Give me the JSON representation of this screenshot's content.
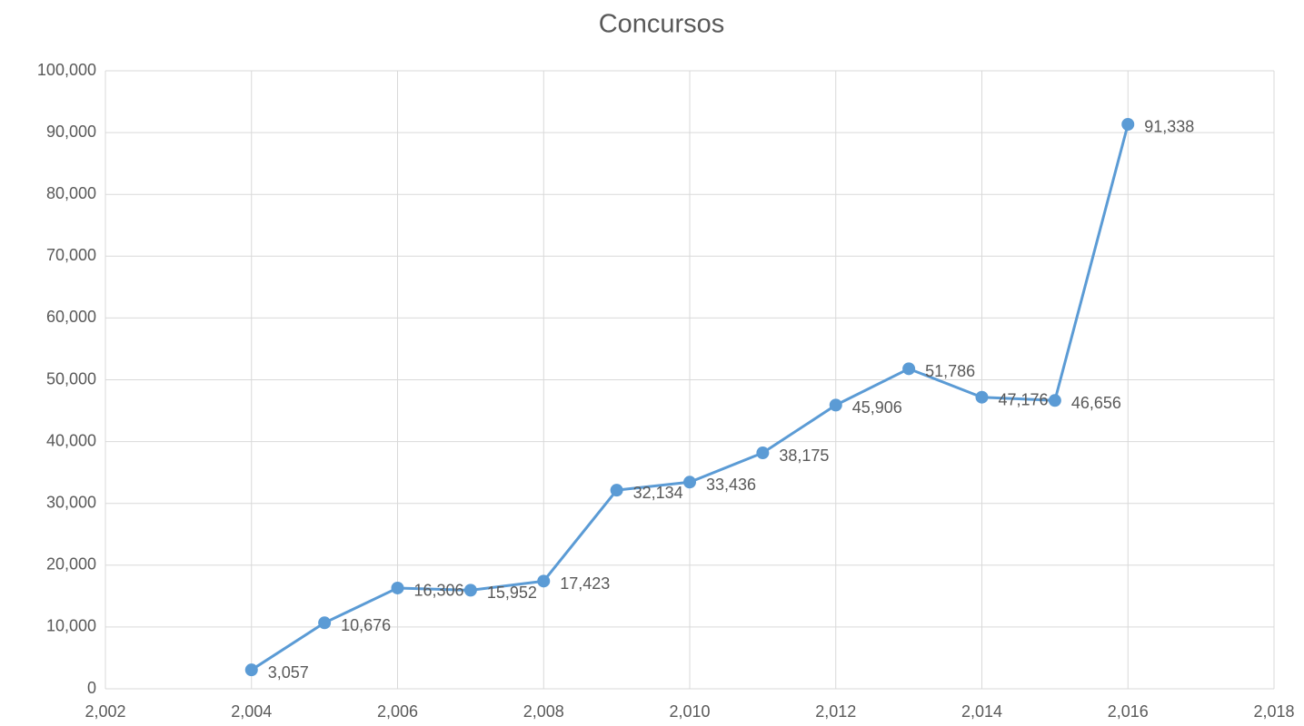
{
  "chart_data": {
    "type": "line",
    "title": "Concursos",
    "x": [
      2004,
      2005,
      2006,
      2007,
      2008,
      2009,
      2010,
      2011,
      2012,
      2013,
      2014,
      2015,
      2016
    ],
    "series": [
      {
        "name": "Concursos",
        "color": "#5b9bd5",
        "values": [
          3057,
          10676,
          16306,
          15952,
          17423,
          32134,
          33436,
          38175,
          45906,
          51786,
          47176,
          46656,
          91338
        ],
        "value_labels": [
          "3,057",
          "10,676",
          "16,306",
          "15,952",
          "17,423",
          "32,134",
          "33,436",
          "38,175",
          "45,906",
          "51,786",
          "47,176",
          "46,656",
          "91,338"
        ]
      }
    ],
    "xlim": [
      2002,
      2018
    ],
    "xticks": [
      {
        "value": 2002,
        "label": "2,002"
      },
      {
        "value": 2004,
        "label": "2,004"
      },
      {
        "value": 2006,
        "label": "2,006"
      },
      {
        "value": 2008,
        "label": "2,008"
      },
      {
        "value": 2010,
        "label": "2,010"
      },
      {
        "value": 2012,
        "label": "2,012"
      },
      {
        "value": 2014,
        "label": "2,014"
      },
      {
        "value": 2016,
        "label": "2,016"
      },
      {
        "value": 2018,
        "label": "2,018"
      }
    ],
    "ylim": [
      0,
      100000
    ],
    "yticks": [
      0,
      {
        "value": 10000,
        "label": "10,000"
      },
      {
        "value": 20000,
        "label": "20,000"
      },
      {
        "value": 30000,
        "label": "30,000"
      },
      {
        "value": 40000,
        "label": "40,000"
      },
      {
        "value": 50000,
        "label": "50,000"
      },
      {
        "value": 60000,
        "label": "60,000"
      },
      {
        "value": 70000,
        "label": "70,000"
      },
      {
        "value": 80000,
        "label": "80,000"
      },
      {
        "value": 90000,
        "label": "90,000"
      },
      {
        "value": 100000,
        "label": "100,000"
      }
    ],
    "grid": true
  }
}
